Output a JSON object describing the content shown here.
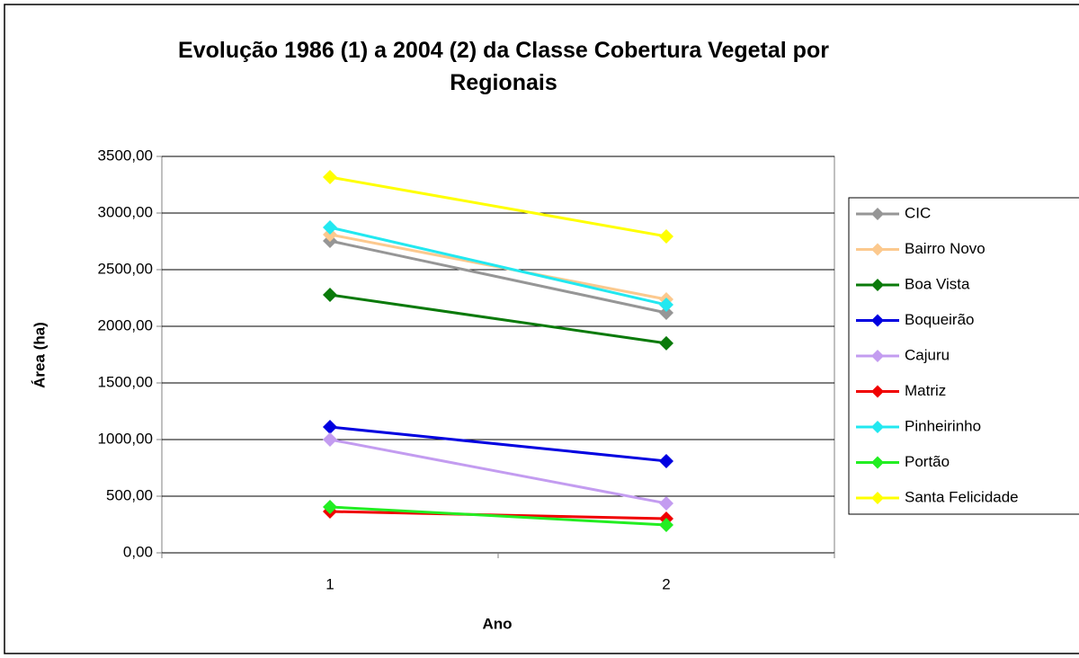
{
  "chart_data": {
    "type": "line",
    "title": "Evolução 1986 (1) a 2004 (2) da Classe Cobertura Vegetal por Regionais",
    "x_label": "Ano",
    "y_label": "Área (ha)",
    "categories": [
      "1",
      "2"
    ],
    "ylim": [
      0,
      3500
    ],
    "yticks": [
      {
        "value": 0,
        "label": "0,00"
      },
      {
        "value": 500,
        "label": "500,00"
      },
      {
        "value": 1000,
        "label": "1000,00"
      },
      {
        "value": 1500,
        "label": "1500,00"
      },
      {
        "value": 2000,
        "label": "2000,00"
      },
      {
        "value": 2500,
        "label": "2500,00"
      },
      {
        "value": 3000,
        "label": "3000,00"
      },
      {
        "value": 3500,
        "label": "3500,00"
      }
    ],
    "grid": true,
    "legend": "right",
    "series": [
      {
        "name": "CIC",
        "color": "#969696",
        "values": [
          2754,
          2119
        ]
      },
      {
        "name": "Bairro Novo",
        "color": "#fcc98e",
        "values": [
          2810,
          2238
        ]
      },
      {
        "name": "Boa Vista",
        "color": "#0a7a0a",
        "values": [
          2278,
          1850
        ]
      },
      {
        "name": "Boqueirão",
        "color": "#0000e0",
        "values": [
          1111,
          810
        ]
      },
      {
        "name": "Cajuru",
        "color": "#c39cf0",
        "values": [
          1000,
          437
        ]
      },
      {
        "name": "Matriz",
        "color": "#f00000",
        "values": [
          365,
          302
        ]
      },
      {
        "name": "Pinheirinho",
        "color": "#22e8f0",
        "values": [
          2873,
          2190
        ]
      },
      {
        "name": "Portão",
        "color": "#22ee22",
        "values": [
          405,
          246
        ]
      },
      {
        "name": "Santa Felicidade",
        "color": "#ffff00",
        "values": [
          3317,
          2794
        ]
      }
    ]
  }
}
